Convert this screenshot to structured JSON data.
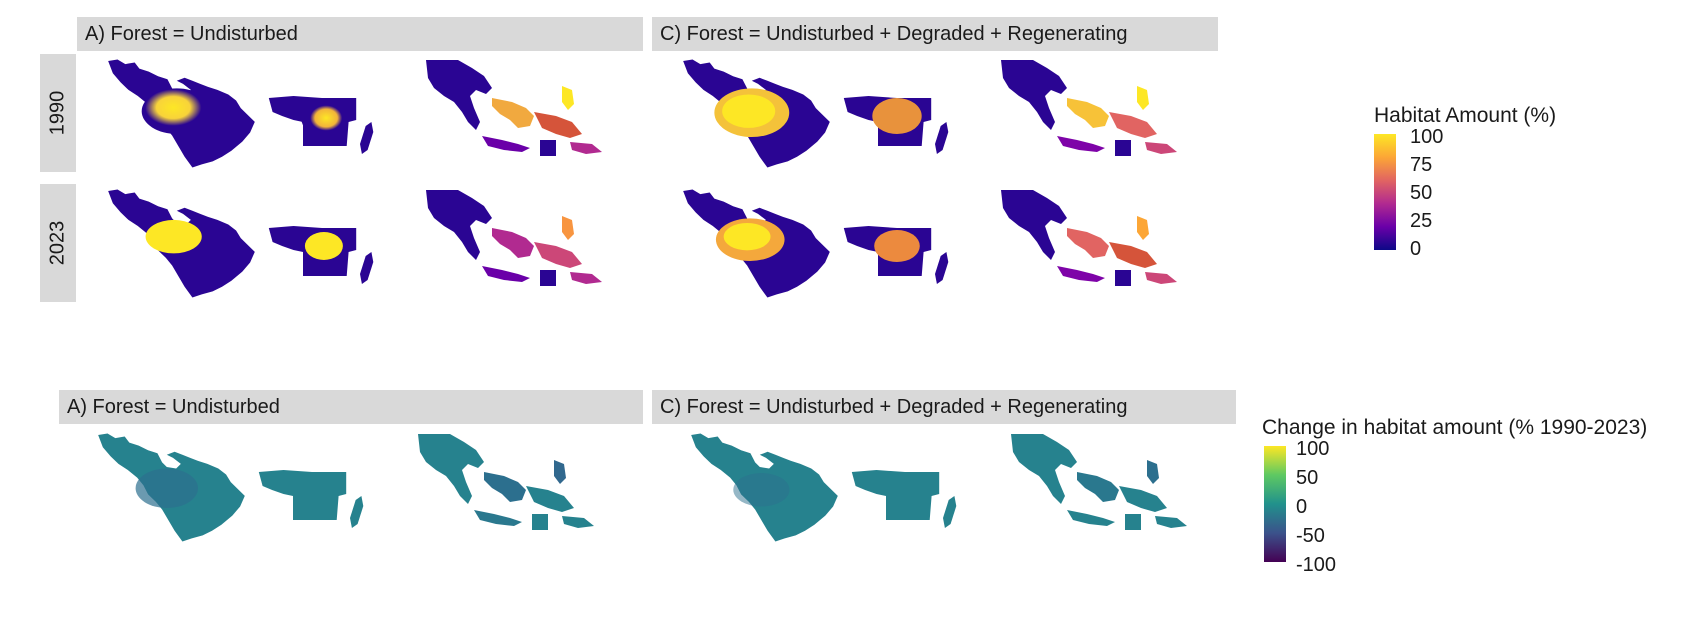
{
  "top_section": {
    "facets": [
      {
        "label": "A) Forest = Undisturbed"
      },
      {
        "label": "C) Forest = Undisturbed + Degraded + Regenerating"
      }
    ],
    "rows": [
      {
        "label": "1990"
      },
      {
        "label": "2023"
      }
    ],
    "legend": {
      "title": "Habitat Amount (%)",
      "ticks": [
        "100",
        "75",
        "50",
        "25",
        "0"
      ],
      "scale": "plasma",
      "colors": [
        "#fde725",
        "#fca636",
        "#e16462",
        "#b12a90",
        "#6a00a8",
        "#0d0887"
      ]
    }
  },
  "bottom_section": {
    "facets": [
      {
        "label": "A) Forest = Undisturbed"
      },
      {
        "label": "C) Forest = Undisturbed + Degraded + Regenerating"
      }
    ],
    "legend": {
      "title": "Change in habitat amount (% 1990-2023)",
      "ticks": [
        "100",
        "50",
        "0",
        "-50",
        "-100"
      ],
      "scale": "viridis",
      "colors": [
        "#fde725",
        "#5ec962",
        "#21918c",
        "#3b528b",
        "#440154"
      ]
    }
  }
}
